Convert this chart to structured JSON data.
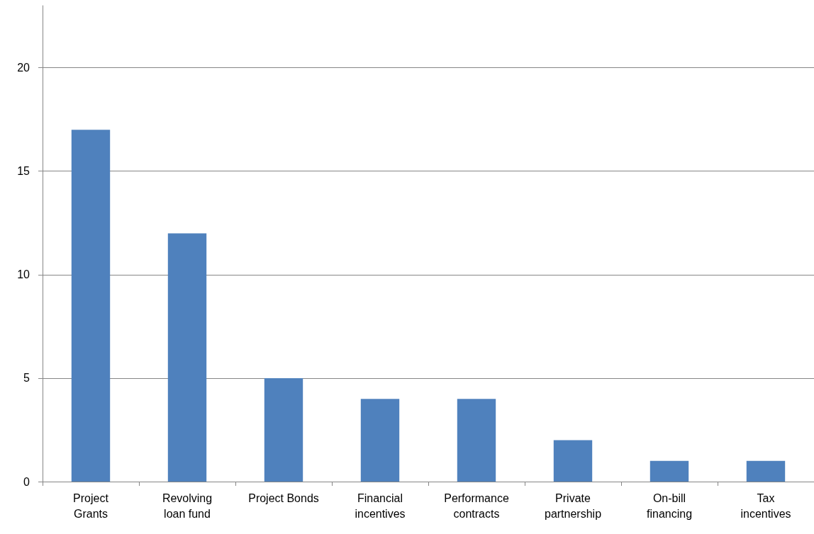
{
  "chart_data": {
    "type": "bar",
    "categories": [
      "Project\nGrants",
      "Revolving\nloan fund",
      "Project Bonds",
      "Financial\nincentives",
      "Performance\ncontracts",
      "Private\npartnership",
      "On-bill\nfinancing",
      "Tax\nincentives"
    ],
    "values": [
      17,
      12,
      5,
      4,
      4,
      2,
      1,
      1
    ],
    "color": "#4f81bd",
    "ylim": [
      0,
      23
    ],
    "yticks": [
      0,
      5,
      10,
      15,
      20
    ],
    "grid": "y"
  }
}
